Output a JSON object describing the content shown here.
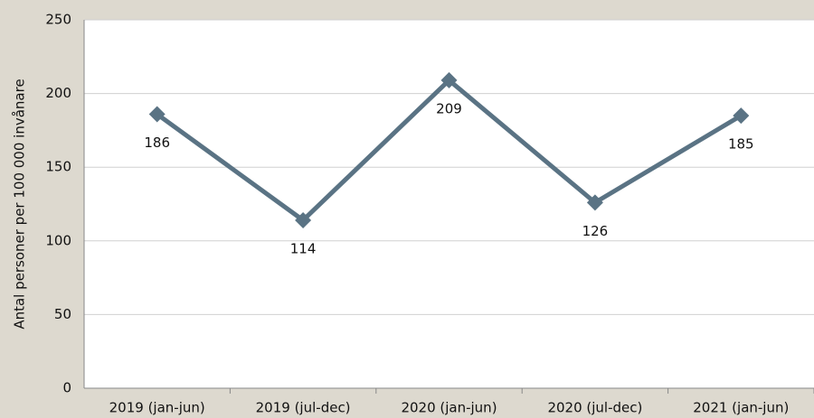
{
  "chart_data": {
    "type": "line",
    "y_label": "Antal personer per 100 000 invånare",
    "categories": [
      "2019 (jan-jun)",
      "2019 (jul-dec)",
      "2020 (jan-jun)",
      "2020 (jul-dec)",
      "2021 (jan-jun)"
    ],
    "series": [
      {
        "color": "#5a7384",
        "values": [
          186,
          114,
          209,
          126,
          185
        ]
      }
    ],
    "ylim": [
      0,
      250
    ],
    "yticks": [
      0,
      50,
      100,
      150,
      200,
      250
    ],
    "grid": true
  }
}
